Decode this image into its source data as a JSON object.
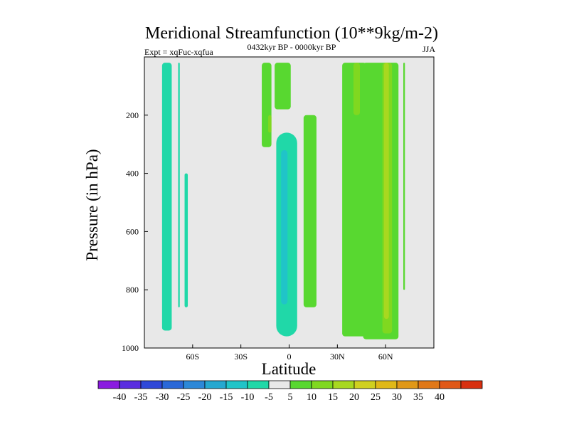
{
  "chart_data": {
    "type": "contour",
    "title": "Meridional Streamfunction (10**9kg/m-2)",
    "subtitle_left": "Expt = xqFuc-xqfua",
    "subtitle_center": "0432kyr BP - 0000kyr BP",
    "subtitle_right": "JJA",
    "xlabel": "Latitude",
    "ylabel": "Pressure (in hPa)",
    "xlim": [
      -90,
      90
    ],
    "ylim": [
      1000,
      0
    ],
    "xticks": [
      {
        "value": -60,
        "label": "60S"
      },
      {
        "value": -30,
        "label": "30S"
      },
      {
        "value": 0,
        "label": "0"
      },
      {
        "value": 30,
        "label": "30N"
      },
      {
        "value": 60,
        "label": "60N"
      }
    ],
    "yticks": [
      {
        "value": 200,
        "label": "200"
      },
      {
        "value": 400,
        "label": "400"
      },
      {
        "value": 600,
        "label": "600"
      },
      {
        "value": 800,
        "label": "800"
      },
      {
        "value": 1000,
        "label": "1000"
      }
    ],
    "colorbar": {
      "colors": [
        "#8a1be0",
        "#5a2ee0",
        "#2f48d8",
        "#2a68d8",
        "#2c88d8",
        "#25a8d0",
        "#20c4c8",
        "#20d8a8",
        "#e8e8e8",
        "#58d830",
        "#80d820",
        "#a8d820",
        "#d0d020",
        "#e0b818",
        "#e09818",
        "#e07818",
        "#e05818",
        "#d83010"
      ],
      "labels": [
        "-40",
        "-35",
        "-30",
        "-25",
        "-20",
        "-15",
        "-10",
        "-5",
        "5",
        "10",
        "15",
        "20",
        "25",
        "30",
        "35",
        "40"
      ]
    },
    "regions": [
      {
        "value": -8,
        "lat": [
          -79,
          -73
        ],
        "p": [
          20,
          940
        ],
        "shape": "band"
      },
      {
        "value": -8,
        "lat": [
          -69,
          -68
        ],
        "p": [
          20,
          860
        ],
        "shape": "band"
      },
      {
        "value": -8,
        "lat": [
          -65,
          -63
        ],
        "p": [
          400,
          860
        ],
        "shape": "band"
      },
      {
        "value": 8,
        "lat": [
          -17,
          -11
        ],
        "p": [
          20,
          310
        ],
        "shape": "band"
      },
      {
        "value": 12,
        "lat": [
          -13,
          -11
        ],
        "p": [
          200,
          260
        ],
        "shape": "blob"
      },
      {
        "value": -10,
        "lat": [
          -8,
          5
        ],
        "p": [
          260,
          960
        ],
        "shape": "blob"
      },
      {
        "value": -13,
        "lat": [
          -5,
          -1
        ],
        "p": [
          320,
          850
        ],
        "shape": "blob"
      },
      {
        "value": 8,
        "lat": [
          -9,
          1
        ],
        "p": [
          20,
          180
        ],
        "shape": "band"
      },
      {
        "value": 8,
        "lat": [
          9,
          17
        ],
        "p": [
          200,
          860
        ],
        "shape": "band"
      },
      {
        "value": 8,
        "lat": [
          33,
          48
        ],
        "p": [
          20,
          960
        ],
        "shape": "band"
      },
      {
        "value": 12,
        "lat": [
          40,
          44
        ],
        "p": [
          20,
          200
        ],
        "shape": "band"
      },
      {
        "value": 8,
        "lat": [
          46,
          68
        ],
        "p": [
          20,
          970
        ],
        "shape": "band"
      },
      {
        "value": 12,
        "lat": [
          58,
          64
        ],
        "p": [
          20,
          950
        ],
        "shape": "band"
      },
      {
        "value": 17,
        "lat": [
          59,
          62
        ],
        "p": [
          20,
          900
        ],
        "shape": "band"
      },
      {
        "value": 8,
        "lat": [
          71,
          72
        ],
        "p": [
          20,
          800
        ],
        "shape": "band"
      }
    ]
  }
}
